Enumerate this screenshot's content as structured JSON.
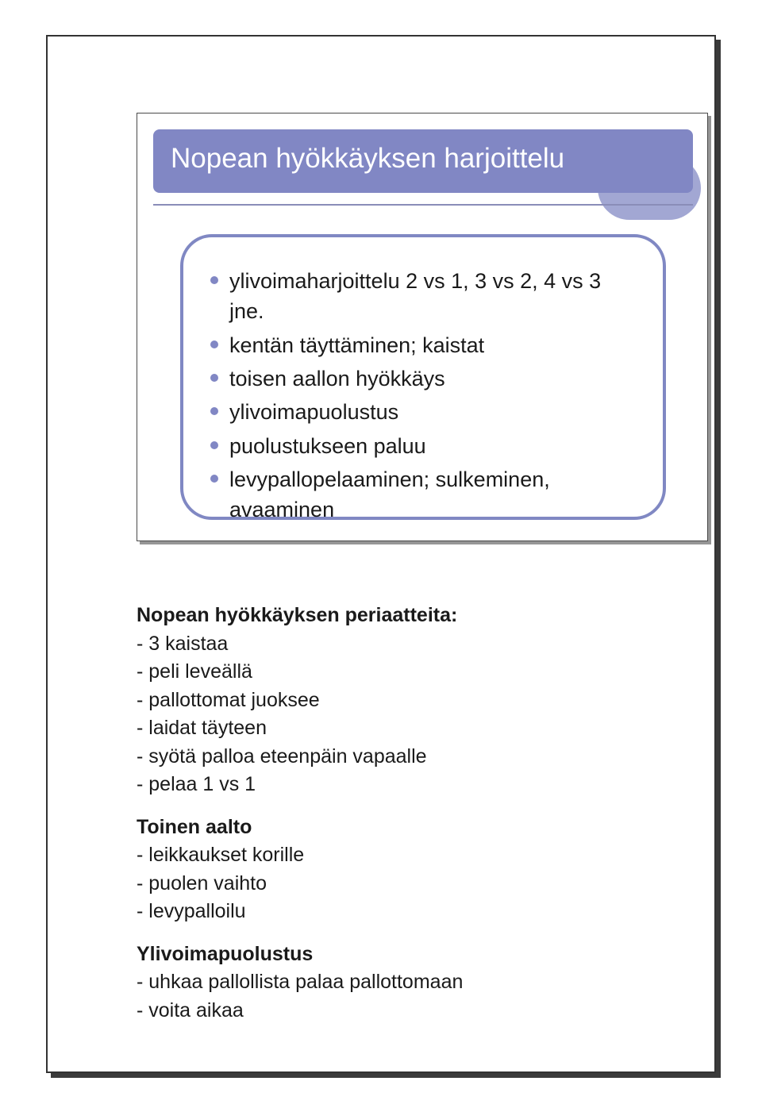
{
  "colors": {
    "frame_border": "#333333",
    "frame_shadow": "#3a3a3a",
    "card_shadow": "#969696",
    "card_border": "#4a4a4a",
    "title_bg": "#8187c4",
    "title_accent": "#a2a7d3",
    "title_rule": "#8a8db8",
    "content_border": "#8088c3",
    "bullet_dot": "#8187c4",
    "title_text": "#ffffff",
    "body_text": "#1a1a1a",
    "page_bg": "#ffffff"
  },
  "slide": {
    "title": "Nopean hyökkäyksen harjoittelu",
    "bullets": [
      "ylivoimaharjoittelu 2 vs 1, 3 vs 2, 4 vs 3 jne.",
      "kentän täyttäminen; kaistat",
      "toisen aallon hyökkäys",
      "ylivoimapuolustus",
      "puolustukseen paluu",
      "levypallopelaaminen; sulkeminen, avaaminen"
    ]
  },
  "notes": {
    "section1": {
      "title": "Nopean hyökkäyksen periaatteita:",
      "lines": [
        "- 3 kaistaa",
        "- peli leveällä",
        "- pallottomat juoksee",
        "- laidat täyteen",
        "- syötä palloa eteenpäin vapaalle",
        "- pelaa 1 vs 1"
      ]
    },
    "section2": {
      "title": "Toinen aalto",
      "lines": [
        "- leikkaukset korille",
        "- puolen vaihto",
        "- levypalloilu"
      ]
    },
    "section3": {
      "title": "Ylivoimapuolustus",
      "lines": [
        "- uhkaa pallollista palaa pallottomaan",
        "- voita aikaa"
      ]
    }
  }
}
